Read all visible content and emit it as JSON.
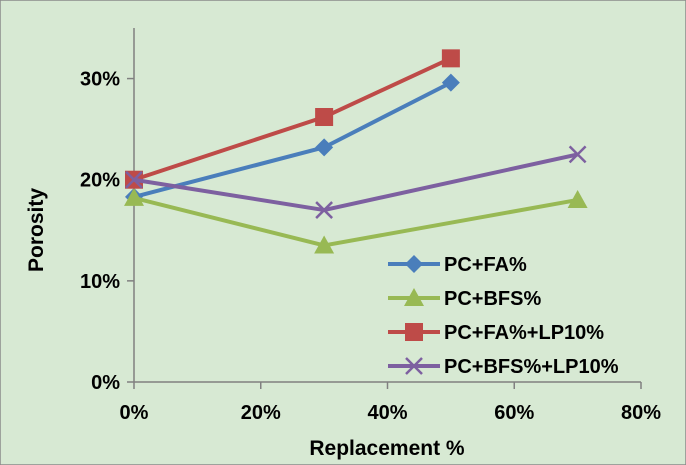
{
  "chart_data": {
    "type": "line",
    "title": "",
    "xlabel": "Replacement %",
    "ylabel": "Porosity",
    "xlim": [
      0,
      80
    ],
    "ylim": [
      0,
      35
    ],
    "x_ticks": [
      0,
      20,
      40,
      60,
      80
    ],
    "x_tick_labels": [
      "0%",
      "20%",
      "40%",
      "60%",
      "80%"
    ],
    "y_ticks": [
      0,
      10,
      20,
      30
    ],
    "y_tick_labels": [
      "0%",
      "10%",
      "20%",
      "30%"
    ],
    "grid": false,
    "legend_position": "bottom-right",
    "background_color": "#d7e9d3",
    "series": [
      {
        "name": "PC+FA%",
        "color": "#4a7ebb",
        "marker": "diamond",
        "points": [
          {
            "x": 0,
            "y": 18.3
          },
          {
            "x": 30,
            "y": 23.2
          },
          {
            "x": 50,
            "y": 29.6
          }
        ]
      },
      {
        "name": "PC+BFS%",
        "color": "#98b954",
        "marker": "triangle",
        "points": [
          {
            "x": 0,
            "y": 18.2
          },
          {
            "x": 30,
            "y": 13.5
          },
          {
            "x": 70,
            "y": 18.0
          }
        ]
      },
      {
        "name": "PC+FA%+LP10%",
        "color": "#be4b48",
        "marker": "square",
        "points": [
          {
            "x": 0,
            "y": 20.0
          },
          {
            "x": 30,
            "y": 26.2
          },
          {
            "x": 50,
            "y": 32.0
          }
        ]
      },
      {
        "name": "PC+BFS%+LP10%",
        "color": "#7d60a0",
        "marker": "cross",
        "points": [
          {
            "x": 0,
            "y": 20.0
          },
          {
            "x": 30,
            "y": 17.0
          },
          {
            "x": 70,
            "y": 22.5
          }
        ]
      }
    ]
  }
}
